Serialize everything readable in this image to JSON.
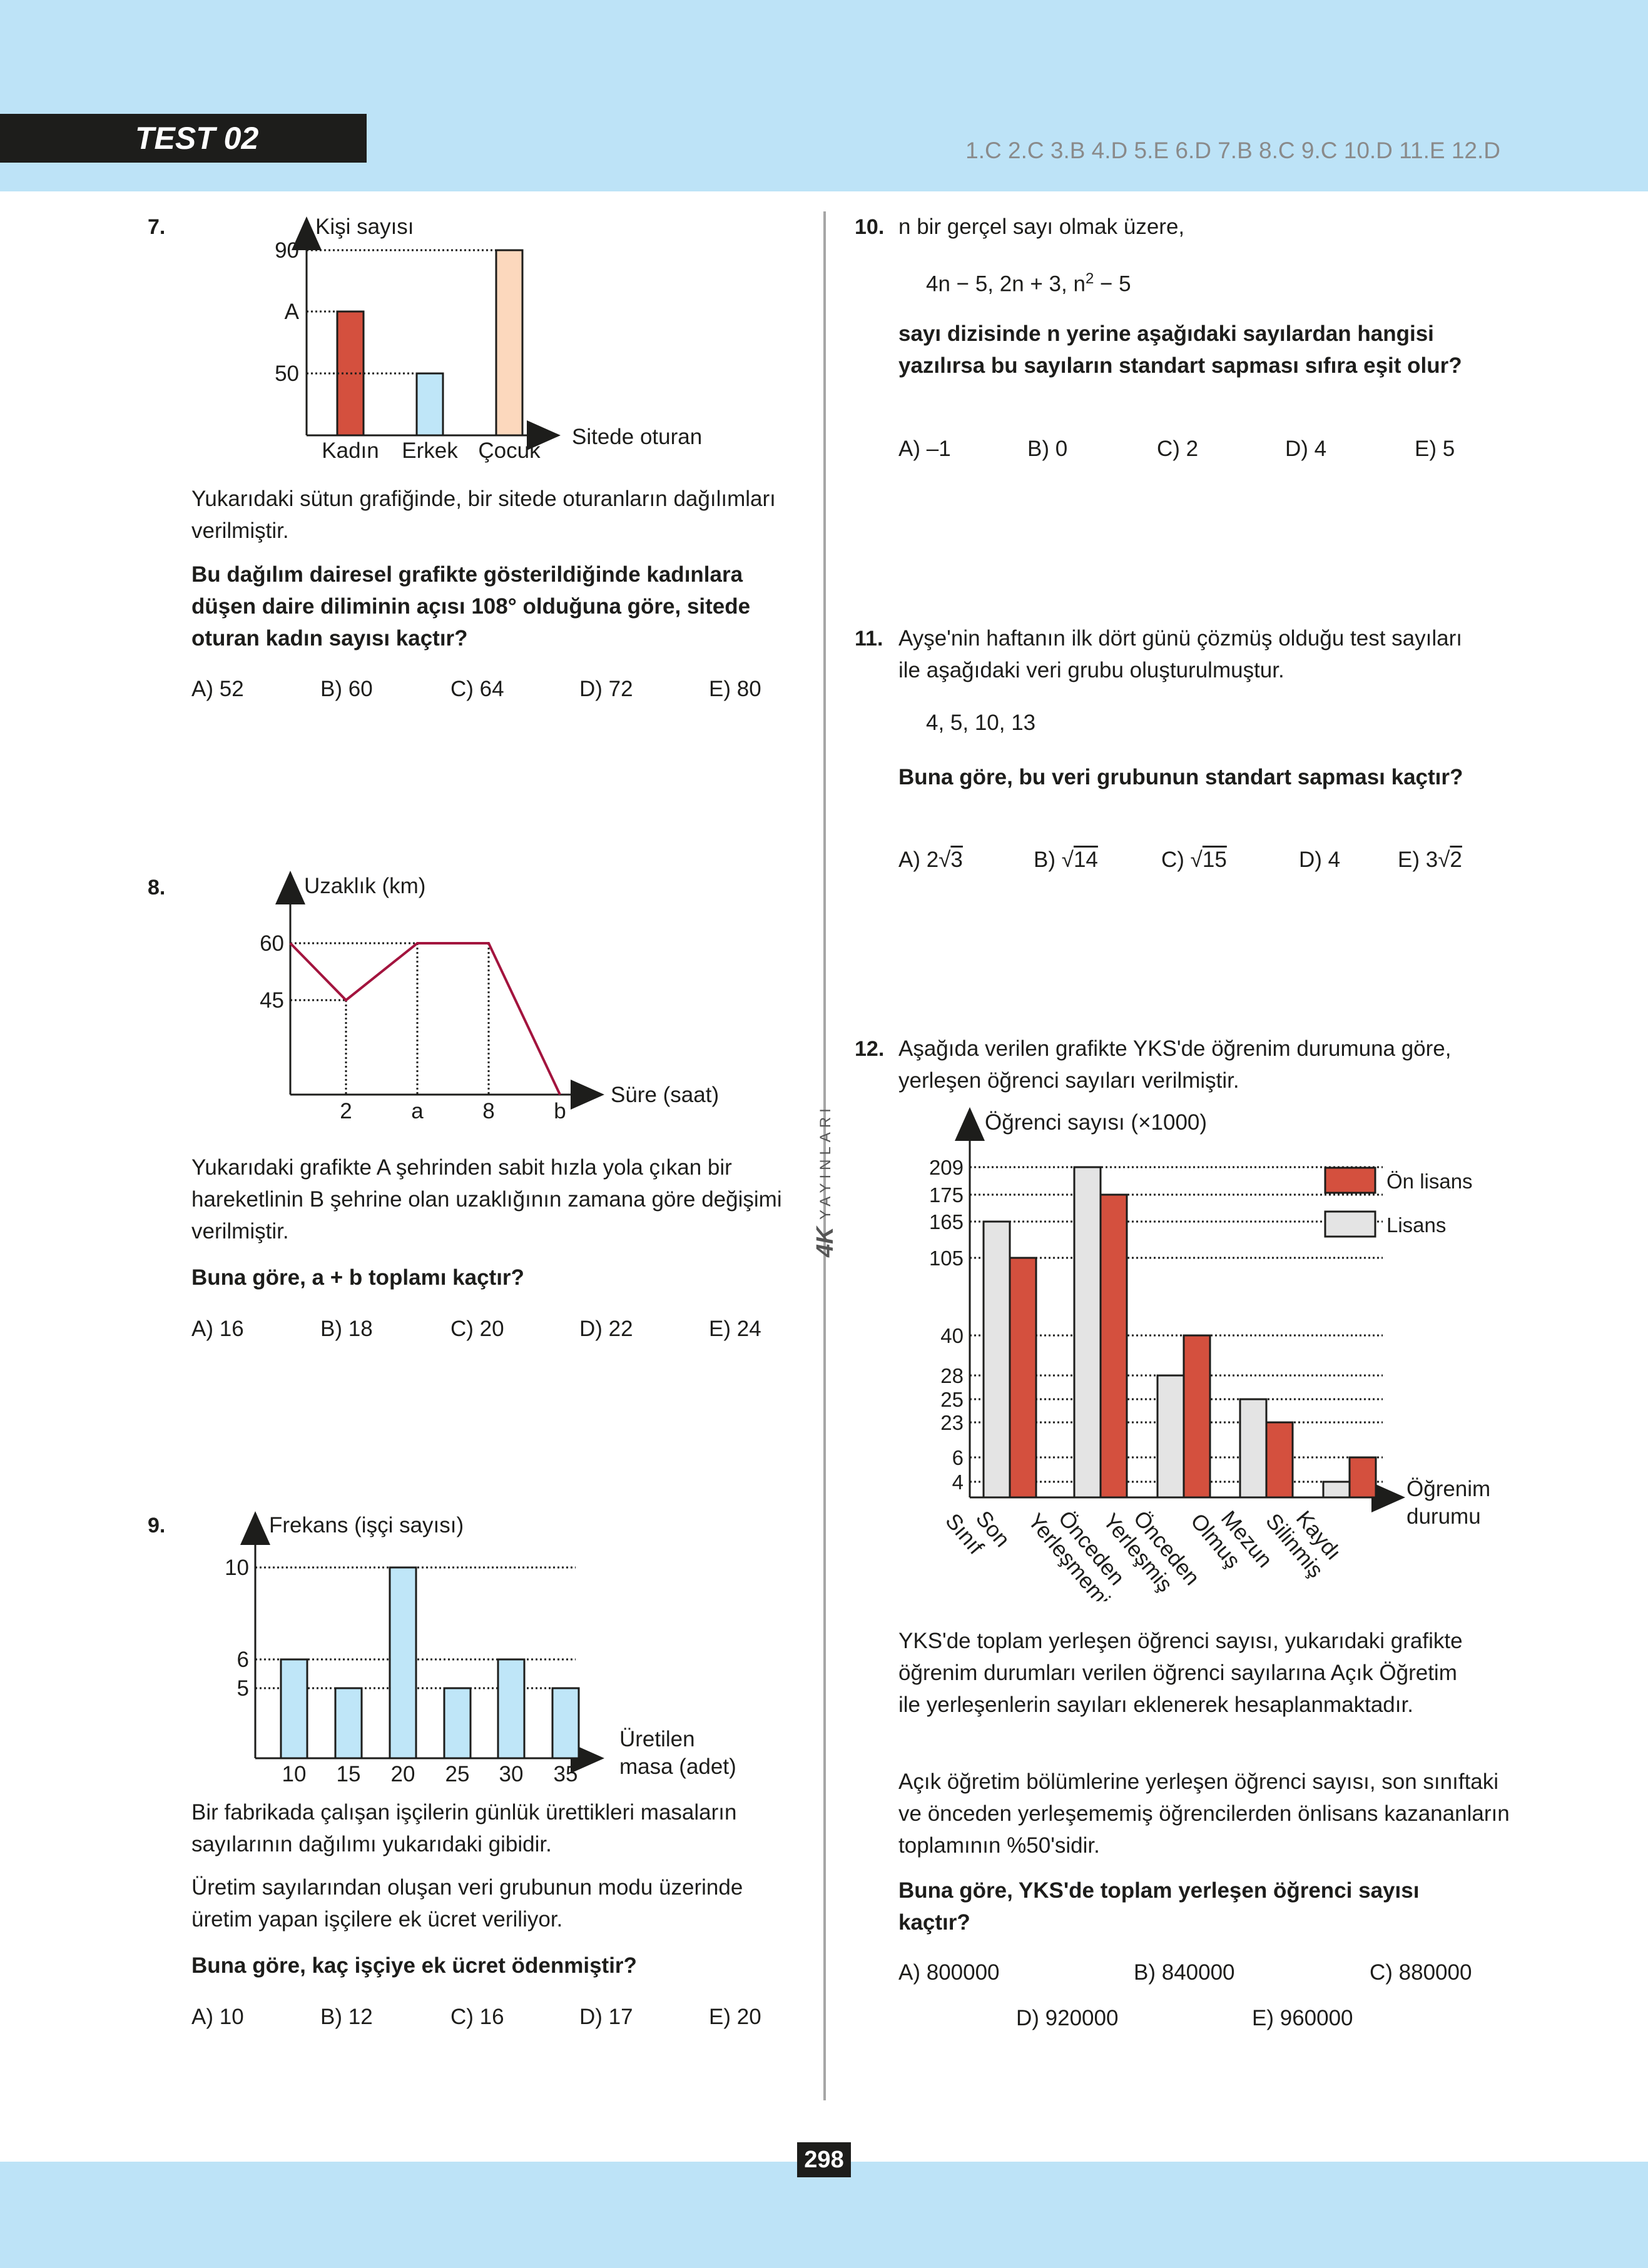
{
  "header": {
    "test_label": "TEST 02",
    "answer_key": "1.C 2.C 3.B 4.D 5.E 6.D 7.B 8.C 9.C 10.D 11.E 12.D"
  },
  "footer": {
    "page_number": "298"
  },
  "brand": {
    "logo_text": "4K",
    "word": "YAYINLARI"
  },
  "q7": {
    "number": "7.",
    "text1": "Yukarıdaki sütun grafiğinde, bir sitede oturanların dağılımları verilmiştir.",
    "text2": "Bu dağılım dairesel grafikte gösterildiğinde kadınlara düşen daire diliminin açısı 108° olduğuna göre, sitede oturan kadın sayısı kaçtır?",
    "options": [
      "A) 52",
      "B) 60",
      "C) 64",
      "D) 72",
      "E) 80"
    ]
  },
  "q8": {
    "number": "8.",
    "text1": "Yukarıdaki grafikte A şehrinden sabit hızla yola çıkan bir hareketlinin B şehrine olan uzaklığının zamana göre değişimi verilmiştir.",
    "text2": "Buna göre, a + b toplamı kaçtır?",
    "options": [
      "A) 16",
      "B) 18",
      "C) 20",
      "D) 22",
      "E) 24"
    ]
  },
  "q9": {
    "number": "9.",
    "text1": "Bir fabrikada çalışan işçilerin günlük ürettikleri masaların sayılarının dağılımı yukarıdaki gibidir.",
    "text2": "Üretim sayılarından oluşan veri grubunun modu üzerinde üretim yapan işçilere ek ücret veriliyor.",
    "text3": "Buna göre, kaç işçiye ek ücret ödenmiştir?",
    "options": [
      "A) 10",
      "B) 12",
      "C) 16",
      "D) 17",
      "E) 20"
    ]
  },
  "q10": {
    "number": "10.",
    "text1": "n bir gerçel sayı olmak üzere,",
    "seq_a": "4n − 5, 2n + 3, n",
    "seq_sup": "2",
    "seq_b": " − 5",
    "text2": "sayı dizisinde n yerine aşağıdaki sayılardan hangisi yazılırsa bu sayıların standart sapması sıfıra eşit olur?",
    "options": [
      "A) –1",
      "B) 0",
      "C) 2",
      "D) 4",
      "E) 5"
    ]
  },
  "q11": {
    "number": "11.",
    "text1": "Ayşe'nin haftanın ilk dört günü çözmüş olduğu test sayıları ile aşağıdaki veri grubu oluşturulmuştur.",
    "data": "4, 5, 10, 13",
    "text2": "Buna göre, bu veri grubunun standart sapması kaçtır?",
    "options": [
      {
        "label": "A)",
        "coef": "2",
        "rad": "3"
      },
      {
        "label": "B)",
        "coef": "",
        "rad": "14"
      },
      {
        "label": "C)",
        "coef": "",
        "rad": "15"
      },
      {
        "label": "D)",
        "coef": "4",
        "rad": ""
      },
      {
        "label": "E)",
        "coef": "3",
        "rad": "2"
      }
    ]
  },
  "q12": {
    "number": "12.",
    "text1": "Aşağıda verilen grafikte YKS'de öğrenim durumuna göre, yerleşen öğrenci sayıları verilmiştir.",
    "text2": "YKS'de toplam yerleşen öğrenci sayısı, yukarıdaki grafikte öğrenim durumları verilen öğrenci sayılarına Açık Öğretim ile yerleşenlerin sayıları eklenerek hesaplanmaktadır.",
    "text3": "Açık öğretim bölümlerine yerleşen öğrenci sayısı, son sınıftaki ve önceden yerleşememiş öğrencilerden önlisans kazananların toplamının %50'sidir.",
    "text4": "Buna göre, YKS'de toplam yerleşen öğrenci sayısı kaçtır?",
    "options": [
      "A) 800000",
      "B) 840000",
      "C) 880000",
      "D) 920000",
      "E) 960000"
    ]
  },
  "chart_data": [
    {
      "type": "bar",
      "ylabel": "Kişi sayısı",
      "xlabel": "Sitede oturan",
      "categories": [
        "Kadın",
        "Erkek",
        "Çocuk"
      ],
      "values": [
        60,
        50,
        90
      ],
      "value_labels": [
        "A",
        "50",
        "90"
      ],
      "y_ticks": [
        "50",
        "A",
        "90"
      ],
      "colors": [
        "#d4503e",
        "#bfe6f8",
        "#fcd8bd"
      ]
    },
    {
      "type": "line",
      "ylabel": "Uzaklık (km)",
      "xlabel": "Süre (saat)",
      "x_ticks": [
        "2",
        "a",
        "8",
        "b"
      ],
      "y_ticks": [
        "45",
        "60"
      ],
      "points": [
        [
          0,
          60
        ],
        [
          2,
          45
        ],
        [
          5,
          60
        ],
        [
          8,
          60
        ],
        [
          11,
          0
        ]
      ],
      "color": "#a3143e"
    },
    {
      "type": "bar",
      "ylabel": "Frekans (işçi sayısı)",
      "xlabel": "Üretilen masa (adet)",
      "categories": [
        "10",
        "15",
        "20",
        "25",
        "30",
        "35"
      ],
      "values": [
        6,
        5,
        10,
        5,
        6,
        5
      ],
      "y_ticks": [
        "5",
        "6",
        "10"
      ],
      "color": "#bfe6f8"
    },
    {
      "type": "bar",
      "ylabel": "Öğrenci sayısı (×1000)",
      "xlabel": "Öğrenim durumu",
      "categories": [
        "Son Sınıf",
        "Önceden Yerleşmemiş",
        "Önceden Yerleşmiş",
        "Mezun Olmuş",
        "Kaydı Silinmiş"
      ],
      "series": [
        {
          "name": "Lisans",
          "values": [
            165,
            209,
            28,
            25,
            4
          ],
          "color": "#e4e4e4"
        },
        {
          "name": "Ön lisans",
          "values": [
            105,
            175,
            40,
            23,
            6
          ],
          "color": "#d4503e"
        }
      ],
      "y_ticks": [
        "4",
        "6",
        "23",
        "25",
        "28",
        "40",
        "105",
        "165",
        "175",
        "209"
      ],
      "legend_position": "top-right"
    }
  ]
}
